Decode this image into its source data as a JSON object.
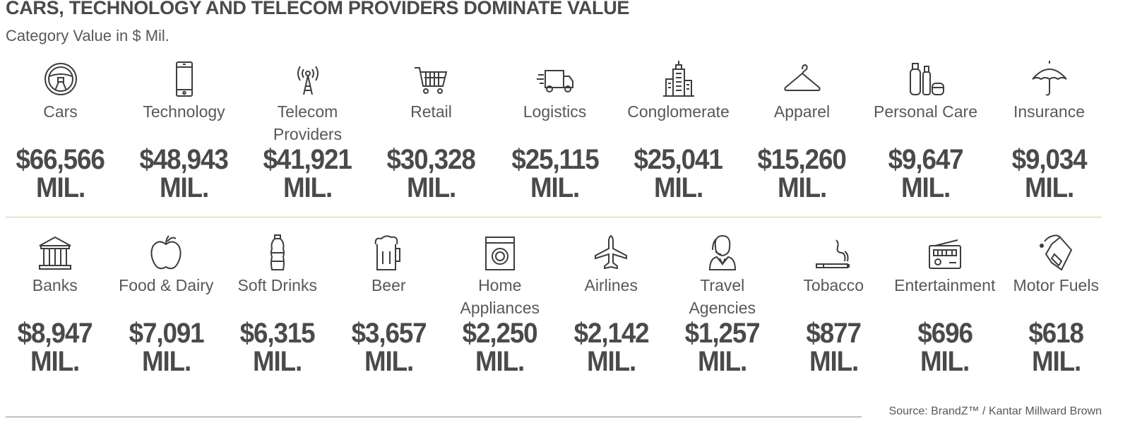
{
  "title": "CARS, TECHNOLOGY AND TELECOM PROVIDERS DOMINATE VALUE",
  "subtitle": "Category Value in $ Mil.",
  "unit_label": "MIL.",
  "accent_divider_color": "#c8dc8a",
  "rows": [
    [
      {
        "label": "Cars",
        "value": "$66,566",
        "icon": "steering-wheel"
      },
      {
        "label": "Technology",
        "value": "$48,943",
        "icon": "smartphone"
      },
      {
        "label": "Telecom\nProviders",
        "value": "$41,921",
        "icon": "antenna-tower"
      },
      {
        "label": "Retail",
        "value": "$30,328",
        "icon": "shopping-cart"
      },
      {
        "label": "Logistics",
        "value": "$25,115",
        "icon": "delivery-truck"
      },
      {
        "label": "Conglomerate",
        "value": "$25,041",
        "icon": "skyscraper"
      },
      {
        "label": "Apparel",
        "value": "$15,260",
        "icon": "hanger"
      },
      {
        "label": "Personal Care",
        "value": "$9,647",
        "icon": "cosmetics"
      },
      {
        "label": "Insurance",
        "value": "$9,034",
        "icon": "umbrella"
      }
    ],
    [
      {
        "label": "Banks",
        "value": "$8,947",
        "icon": "bank"
      },
      {
        "label": "Food & Dairy",
        "value": "$7,091",
        "icon": "apple"
      },
      {
        "label": "Soft Drinks",
        "value": "$6,315",
        "icon": "bottle"
      },
      {
        "label": "Beer",
        "value": "$3,657",
        "icon": "beer-mug"
      },
      {
        "label": "Home\nAppliances",
        "value": "$2,250",
        "icon": "washing-machine"
      },
      {
        "label": "Airlines",
        "value": "$2,142",
        "icon": "airplane"
      },
      {
        "label": "Travel\nAgencies",
        "value": "$1,257",
        "icon": "agent-headset"
      },
      {
        "label": "Tobacco",
        "value": "$877",
        "icon": "cigarette"
      },
      {
        "label": "Entertainment",
        "value": "$696",
        "icon": "radio"
      },
      {
        "label": "Motor Fuels",
        "value": "$618",
        "icon": "oil-can"
      }
    ]
  ],
  "source": "Source: BrandZ™ / Kantar Millward Brown"
}
